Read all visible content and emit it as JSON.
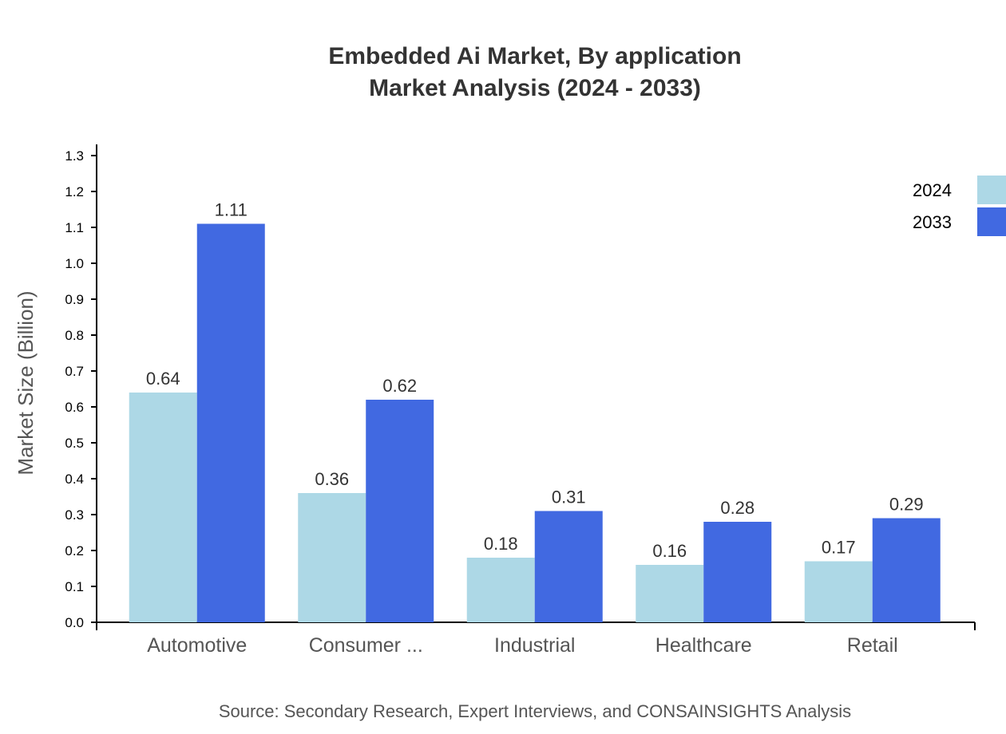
{
  "chart_data": {
    "type": "bar",
    "title": [
      "Embedded Ai Market, By application",
      "Market Analysis (2024 - 2033)"
    ],
    "xlabel": "",
    "ylabel": "Market Size (Billion)",
    "ylim": [
      0,
      1.3
    ],
    "yticks": [
      "0.0",
      "0.1",
      "0.2",
      "0.3",
      "0.4",
      "0.5",
      "0.6",
      "0.7",
      "0.8",
      "0.9",
      "1.0",
      "1.1",
      "1.2",
      "1.3"
    ],
    "categories": [
      "Automotive",
      "Consumer ...",
      "Industrial",
      "Healthcare",
      "Retail"
    ],
    "series": [
      {
        "name": "2024",
        "color": "#ADD8E6",
        "values": [
          0.64,
          0.36,
          0.18,
          0.16,
          0.17
        ]
      },
      {
        "name": "2033",
        "color": "#4169E1",
        "values": [
          1.11,
          0.62,
          0.31,
          0.28,
          0.29
        ]
      }
    ],
    "legend_position": "top-right",
    "grid": false,
    "source": "Source: Secondary Research, Expert Interviews, and CONSAINSIGHTS Analysis"
  }
}
